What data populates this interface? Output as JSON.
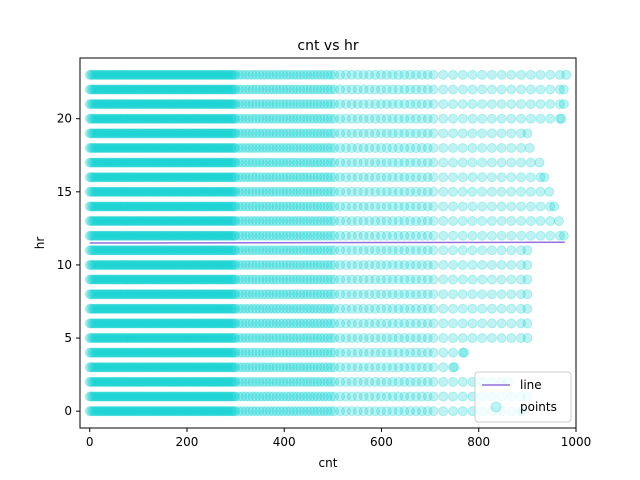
{
  "chart_data": {
    "type": "scatter",
    "title": "cnt vs hr",
    "xlabel": "cnt",
    "ylabel": "hr",
    "xlim": [
      -20,
      1000
    ],
    "ylim": [
      -1.15,
      24.15
    ],
    "xticks": [
      0,
      200,
      400,
      600,
      800,
      1000
    ],
    "yticks": [
      0,
      5,
      10,
      15,
      20
    ],
    "grid": false,
    "legend": {
      "position": "lower right",
      "entries": [
        "line",
        "points"
      ]
    },
    "series": [
      {
        "name": "points",
        "kind": "scatter",
        "color": "#00CED1",
        "opacity": 0.25,
        "note_rows": "one row of points per hour 0-23; each row spans cnt from 0 up to the listed max",
        "hours": [
          0,
          1,
          2,
          3,
          4,
          5,
          6,
          7,
          8,
          9,
          10,
          11,
          12,
          13,
          14,
          15,
          16,
          17,
          18,
          19,
          20,
          21,
          22,
          23
        ],
        "row_max_cnt": [
          890,
          900,
          860,
          750,
          770,
          900,
          900,
          900,
          900,
          900,
          900,
          900,
          975,
          965,
          955,
          945,
          935,
          925,
          905,
          900,
          970,
          975,
          975,
          980
        ]
      },
      {
        "name": "line",
        "kind": "line",
        "color": "#9370DB",
        "x": [
          0,
          977
        ],
        "y": [
          11.5,
          11.55
        ]
      }
    ]
  }
}
